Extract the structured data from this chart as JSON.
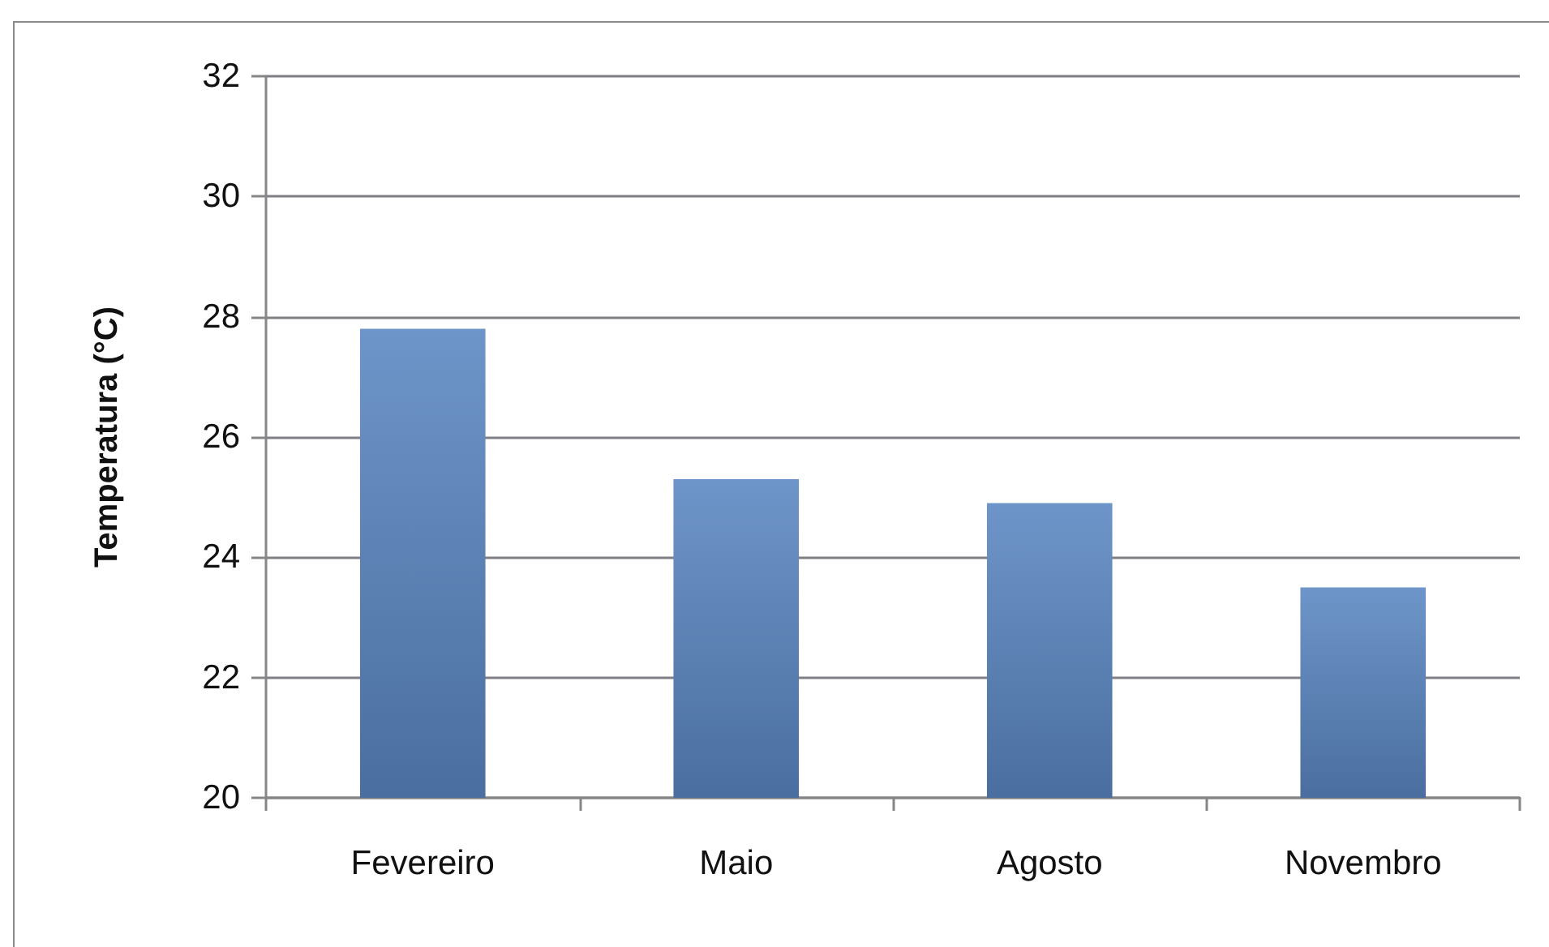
{
  "chart_data": {
    "type": "bar",
    "ylabel": "Temperatura (°C)",
    "categories": [
      "Fevereiro",
      "Maio",
      "Agosto",
      "Novembro"
    ],
    "values": [
      27.8,
      25.3,
      24.9,
      23.5
    ],
    "color": "#5a86c2",
    "ylim": [
      20,
      32
    ],
    "yticks": [
      20,
      22,
      24,
      26,
      28,
      30,
      32
    ],
    "grid": "y"
  }
}
